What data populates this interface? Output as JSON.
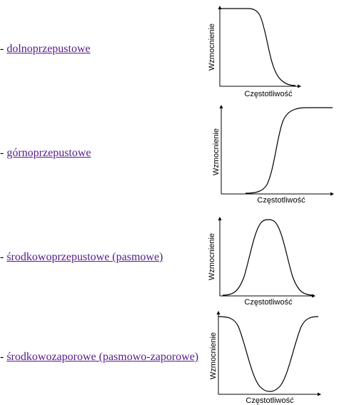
{
  "filters": [
    {
      "dash": "- ",
      "label": "dolnoprzepustowe",
      "shape": "lowpass",
      "xlabel": "Częstotliwość",
      "ylabel": "Wzmocnienie"
    },
    {
      "dash": "- ",
      "label": "górnoprzepustowe",
      "shape": "highpass",
      "xlabel": "Częstotliwość",
      "ylabel": "Wzmocnienie"
    },
    {
      "dash": "- ",
      "label": "środkowoprzepustowe (pasmowe)",
      "shape": "bandpass",
      "xlabel": "Częstotliwość",
      "ylabel": "Wzmocnienie"
    },
    {
      "dash": "- ",
      "label": "środkowozaporowe (pasmowo-zaporowe)",
      "shape": "bandstop",
      "xlabel": "Częstotliwość",
      "ylabel": "Wzmocnienie"
    }
  ],
  "colors": {
    "link": "#551a8b",
    "curve": "#000000",
    "axis": "#000000"
  }
}
